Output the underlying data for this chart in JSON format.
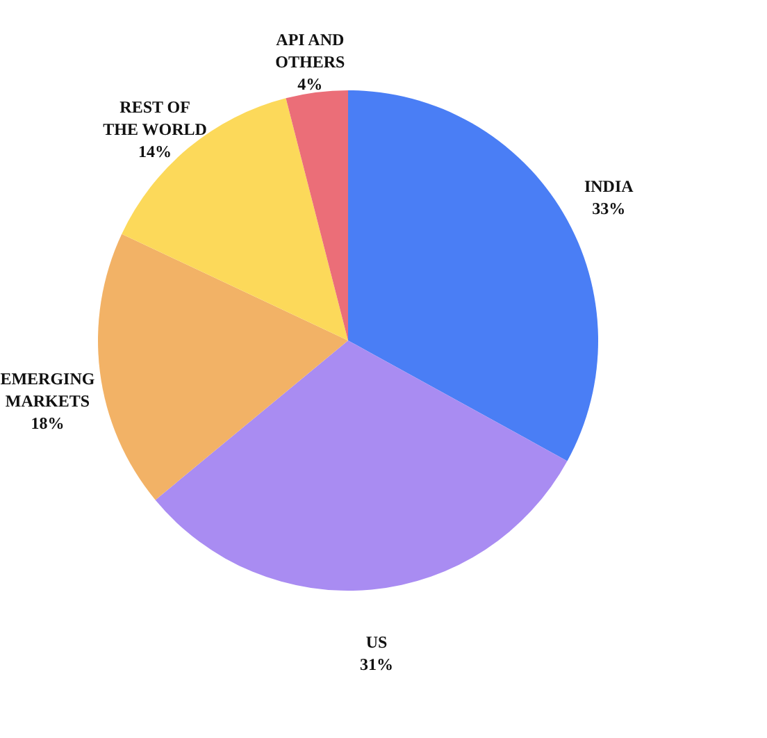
{
  "chart_data": {
    "type": "pie",
    "categories": [
      "INDIA",
      "US",
      "EMERGING MARKETS",
      "REST OF THE WORLD",
      "API AND OTHERS"
    ],
    "values": [
      33,
      31,
      18,
      14,
      4
    ],
    "colors": [
      "#4a7ef5",
      "#a98cf2",
      "#f2b266",
      "#fcd95a",
      "#eb6e78"
    ],
    "value_labels": [
      "33%",
      "31%",
      "18%",
      "14%",
      "4%"
    ],
    "legend": false
  }
}
